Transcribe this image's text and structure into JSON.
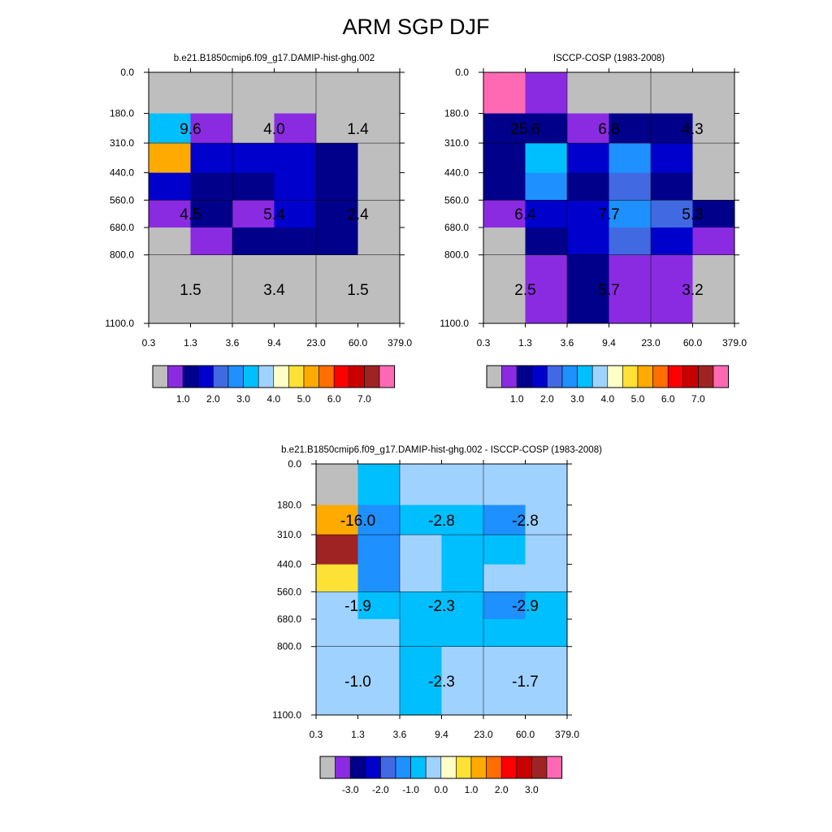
{
  "title": "ARM SGP DJF",
  "chart_data": [
    {
      "type": "heatmap",
      "title": "b.e21.B1850cmip6.f09_g17.DAMIP-hist-ghg.002",
      "x_ticks": [
        "0.3",
        "1.3",
        "3.6",
        "9.4",
        "23.0",
        "60.0",
        "379.0"
      ],
      "y_ticks": [
        "0.0",
        "180.0",
        "310.0",
        "440.0",
        "560.0",
        "680.0",
        "800.0",
        "1100.0"
      ],
      "cells": [
        [
          0,
          0,
          0,
          0,
          0,
          0
        ],
        [
          6,
          1,
          0,
          1,
          0,
          0
        ],
        [
          10,
          3,
          3,
          3,
          2,
          0
        ],
        [
          3,
          2,
          2,
          3,
          2,
          0
        ],
        [
          1,
          2,
          1,
          3,
          2,
          0
        ],
        [
          0,
          1,
          2,
          2,
          2,
          0
        ],
        [
          0,
          0,
          0,
          0,
          0,
          0
        ]
      ],
      "labels": [
        {
          "text": "9.6",
          "col": 0,
          "row": 1
        },
        {
          "text": "4.0",
          "col": 2,
          "row": 1
        },
        {
          "text": "1.4",
          "col": 4,
          "row": 1
        },
        {
          "text": "4.5",
          "col": 0,
          "row": 4
        },
        {
          "text": "5.4",
          "col": 2,
          "row": 4
        },
        {
          "text": "2.4",
          "col": 4,
          "row": 4
        },
        {
          "text": "1.5",
          "col": 0,
          "row": 6
        },
        {
          "text": "3.4",
          "col": 2,
          "row": 6
        },
        {
          "text": "1.5",
          "col": 4,
          "row": 6
        }
      ],
      "colorbar": {
        "colors": [
          "#bebebe",
          "#8a2be2",
          "#00008b",
          "#0000cd",
          "#4169e1",
          "#1e90ff",
          "#00bfff",
          "#a0d2ff",
          "#ffffc8",
          "#fde135",
          "#ffaa00",
          "#ff6e00",
          "#ff0000",
          "#c80000",
          "#a02323",
          "#ff69b4"
        ],
        "tick_labels": [
          "1.0",
          "2.0",
          "3.0",
          "4.0",
          "5.0",
          "6.0",
          "7.0"
        ]
      }
    },
    {
      "type": "heatmap",
      "title": "ISCCP-COSP (1983-2008)",
      "x_ticks": [
        "0.3",
        "1.3",
        "3.6",
        "9.4",
        "23.0",
        "60.0",
        "379.0"
      ],
      "y_ticks": [
        "0.0",
        "180.0",
        "310.0",
        "440.0",
        "560.0",
        "680.0",
        "800.0",
        "1100.0"
      ],
      "cells": [
        [
          15,
          1,
          0,
          0,
          0,
          0
        ],
        [
          2,
          2,
          1,
          2,
          2,
          0
        ],
        [
          2,
          6,
          3,
          5,
          3,
          0
        ],
        [
          2,
          5,
          2,
          4,
          2,
          0
        ],
        [
          1,
          3,
          3,
          5,
          4,
          2
        ],
        [
          0,
          2,
          3,
          4,
          3,
          1
        ],
        [
          0,
          1,
          2,
          1,
          1,
          0
        ]
      ],
      "labels": [
        {
          "text": "25.6",
          "col": 0,
          "row": 1
        },
        {
          "text": "6.8",
          "col": 2,
          "row": 1
        },
        {
          "text": "4.3",
          "col": 4,
          "row": 1
        },
        {
          "text": "6.4",
          "col": 0,
          "row": 4
        },
        {
          "text": "7.7",
          "col": 2,
          "row": 4
        },
        {
          "text": "5.3",
          "col": 4,
          "row": 4
        },
        {
          "text": "2.5",
          "col": 0,
          "row": 6
        },
        {
          "text": "5.7",
          "col": 2,
          "row": 6
        },
        {
          "text": "3.2",
          "col": 4,
          "row": 6
        }
      ],
      "colorbar": {
        "colors": [
          "#bebebe",
          "#8a2be2",
          "#00008b",
          "#0000cd",
          "#4169e1",
          "#1e90ff",
          "#00bfff",
          "#a0d2ff",
          "#ffffc8",
          "#fde135",
          "#ffaa00",
          "#ff6e00",
          "#ff0000",
          "#c80000",
          "#a02323",
          "#ff69b4"
        ],
        "tick_labels": [
          "1.0",
          "2.0",
          "3.0",
          "4.0",
          "5.0",
          "6.0",
          "7.0"
        ]
      }
    },
    {
      "type": "heatmap",
      "title": "b.e21.B1850cmip6.f09_g17.DAMIP-hist-ghg.002 - ISCCP-COSP (1983-2008)",
      "x_ticks": [
        "0.3",
        "1.3",
        "3.6",
        "9.4",
        "23.0",
        "60.0",
        "379.0"
      ],
      "y_ticks": [
        "0.0",
        "180.0",
        "310.0",
        "440.0",
        "560.0",
        "680.0",
        "800.0",
        "1100.0"
      ],
      "cells": [
        [
          0,
          6,
          7,
          7,
          7,
          7
        ],
        [
          10,
          5,
          6,
          6,
          5,
          7
        ],
        [
          14,
          5,
          7,
          6,
          6,
          7
        ],
        [
          9,
          5,
          7,
          6,
          7,
          7
        ],
        [
          7,
          6,
          6,
          6,
          5,
          6
        ],
        [
          7,
          7,
          6,
          6,
          6,
          6
        ],
        [
          7,
          7,
          6,
          7,
          7,
          7
        ]
      ],
      "labels": [
        {
          "text": "-16.0",
          "col": 0,
          "row": 1
        },
        {
          "text": "-2.8",
          "col": 2,
          "row": 1
        },
        {
          "text": "-2.8",
          "col": 4,
          "row": 1
        },
        {
          "text": "-1.9",
          "col": 0,
          "row": 4
        },
        {
          "text": "-2.3",
          "col": 2,
          "row": 4
        },
        {
          "text": "-2.9",
          "col": 4,
          "row": 4
        },
        {
          "text": "-1.0",
          "col": 0,
          "row": 6
        },
        {
          "text": "-2.3",
          "col": 2,
          "row": 6
        },
        {
          "text": "-1.7",
          "col": 4,
          "row": 6
        }
      ],
      "colorbar": {
        "colors": [
          "#bebebe",
          "#8a2be2",
          "#00008b",
          "#0000cd",
          "#4169e1",
          "#1e90ff",
          "#00bfff",
          "#a0d2ff",
          "#ffffc8",
          "#fde135",
          "#ffaa00",
          "#ff6e00",
          "#ff0000",
          "#c80000",
          "#a02323",
          "#ff69b4"
        ],
        "tick_labels": [
          "-3.0",
          "-2.0",
          "-1.0",
          "0.0",
          "1.0",
          "2.0",
          "3.0"
        ]
      }
    }
  ]
}
